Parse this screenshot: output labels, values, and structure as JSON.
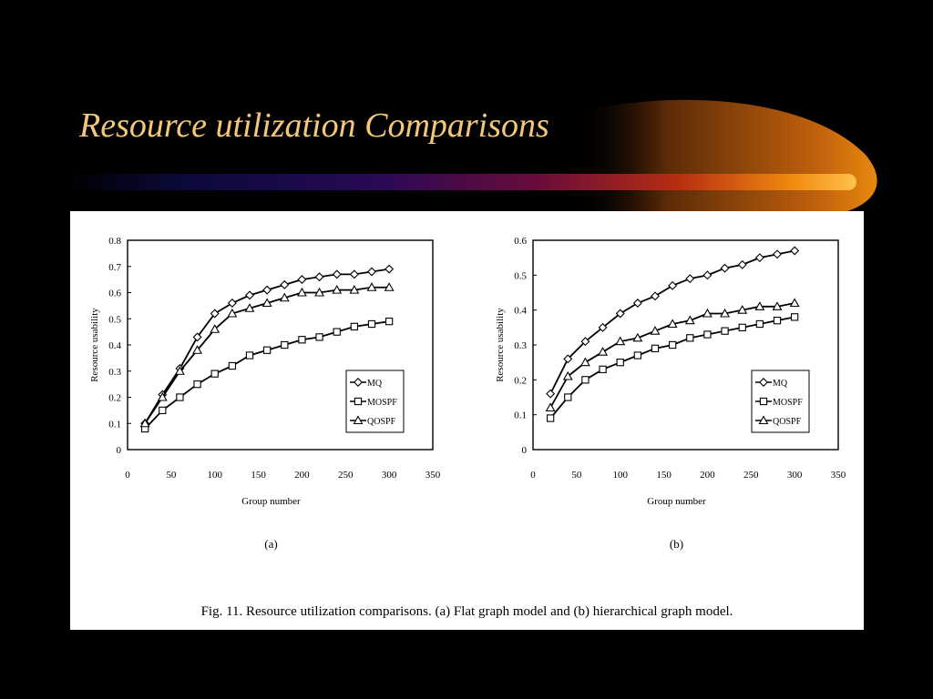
{
  "slide": {
    "title": "Resource utilization Comparisons",
    "colors": {
      "background": "#000000",
      "title": "#f3c77a",
      "swoosh": "#f29b0f"
    }
  },
  "figure": {
    "caption": "Fig. 11.   Resource utilization comparisons. (a) Flat graph model and (b) hierarchical graph model."
  },
  "chart_data": [
    {
      "type": "line",
      "panel_label": "(a)",
      "xlabel": "Group number",
      "ylabel": "Resource usability",
      "xlim": [
        0,
        350
      ],
      "ylim": [
        0,
        0.8
      ],
      "xticks": [
        "0",
        "50",
        "100",
        "150",
        "200",
        "250",
        "300",
        "350"
      ],
      "yticks": [
        "0",
        "0.1",
        "0.2",
        "0.3",
        "0.4",
        "0.5",
        "0.6",
        "0.7",
        "0.8"
      ],
      "legend_position": "bottom-right",
      "x": [
        20,
        40,
        60,
        80,
        100,
        120,
        140,
        160,
        180,
        200,
        220,
        240,
        260,
        280,
        300
      ],
      "series": [
        {
          "name": "MQ",
          "marker": "diamond",
          "values": [
            0.1,
            0.21,
            0.31,
            0.43,
            0.52,
            0.56,
            0.59,
            0.61,
            0.63,
            0.65,
            0.66,
            0.67,
            0.67,
            0.68,
            0.69
          ]
        },
        {
          "name": "MOSPF",
          "marker": "square",
          "values": [
            0.08,
            0.15,
            0.2,
            0.25,
            0.29,
            0.32,
            0.36,
            0.38,
            0.4,
            0.42,
            0.43,
            0.45,
            0.47,
            0.48,
            0.49
          ]
        },
        {
          "name": "QOSPF",
          "marker": "triangle",
          "values": [
            0.1,
            0.2,
            0.3,
            0.38,
            0.46,
            0.52,
            0.54,
            0.56,
            0.58,
            0.6,
            0.6,
            0.61,
            0.61,
            0.62,
            0.62
          ]
        }
      ]
    },
    {
      "type": "line",
      "panel_label": "(b)",
      "xlabel": "Group number",
      "ylabel": "Resource usability",
      "xlim": [
        0,
        350
      ],
      "ylim": [
        0,
        0.6
      ],
      "xticks": [
        "0",
        "50",
        "100",
        "150",
        "200",
        "250",
        "300",
        "350"
      ],
      "yticks": [
        "0",
        "0.1",
        "0.2",
        "0.3",
        "0.4",
        "0.5",
        "0.6"
      ],
      "legend_position": "bottom-right",
      "x": [
        20,
        40,
        60,
        80,
        100,
        120,
        140,
        160,
        180,
        200,
        220,
        240,
        260,
        280,
        300
      ],
      "series": [
        {
          "name": "MQ",
          "marker": "diamond",
          "values": [
            0.16,
            0.26,
            0.31,
            0.35,
            0.39,
            0.42,
            0.44,
            0.47,
            0.49,
            0.5,
            0.52,
            0.53,
            0.55,
            0.56,
            0.57
          ]
        },
        {
          "name": "MOSPF",
          "marker": "square",
          "values": [
            0.09,
            0.15,
            0.2,
            0.23,
            0.25,
            0.27,
            0.29,
            0.3,
            0.32,
            0.33,
            0.34,
            0.35,
            0.36,
            0.37,
            0.38
          ]
        },
        {
          "name": "QOSPF",
          "marker": "triangle",
          "values": [
            0.12,
            0.21,
            0.25,
            0.28,
            0.31,
            0.32,
            0.34,
            0.36,
            0.37,
            0.39,
            0.39,
            0.4,
            0.41,
            0.41,
            0.42
          ]
        }
      ]
    }
  ]
}
